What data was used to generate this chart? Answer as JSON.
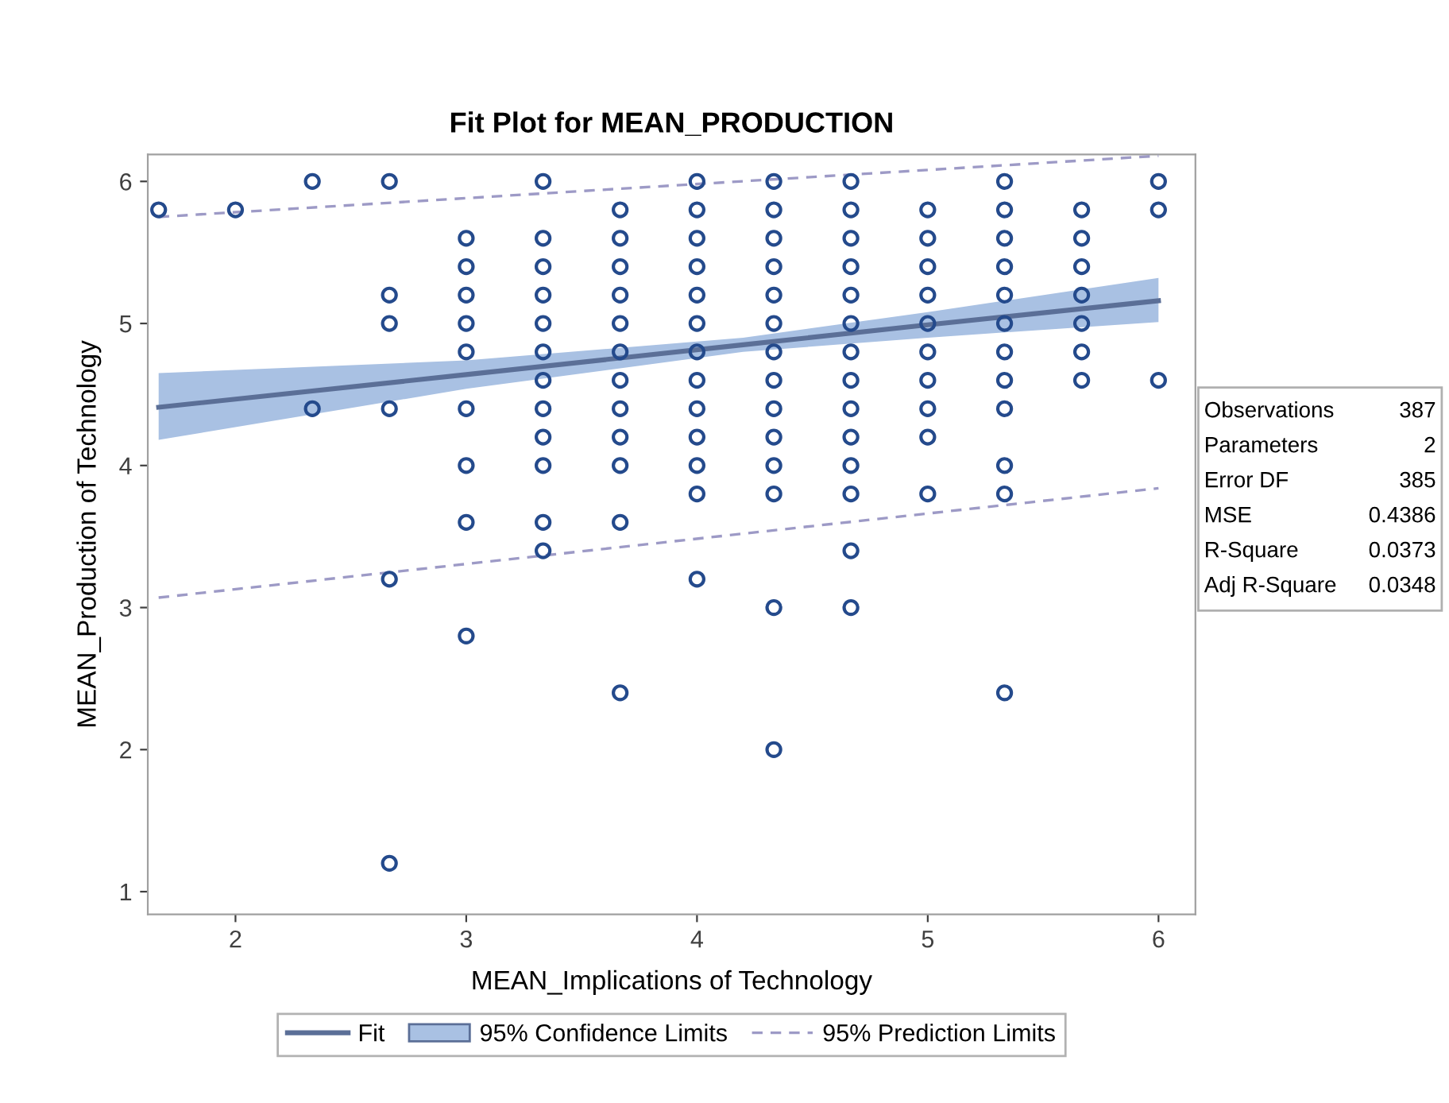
{
  "chart_data": {
    "type": "scatter",
    "title": "Fit Plot for MEAN_PRODUCTION",
    "xlabel": "MEAN_Implications of Technology",
    "ylabel": "MEAN_Production of Technology",
    "xlim": [
      1.62,
      6.16
    ],
    "ylim": [
      0.84,
      6.19
    ],
    "xticks": [
      2,
      3,
      4,
      5,
      6
    ],
    "yticks": [
      1,
      2,
      3,
      4,
      5,
      6
    ],
    "grid": false,
    "legend": "bottom",
    "annotations": [
      "Observations",
      "387",
      "Parameters",
      "2",
      "Error DF",
      "385",
      "MSE",
      "0.4386",
      "R-Square",
      "0.0373",
      "Adj R-Square",
      "0.0348",
      "95% Confidence Limits"
    ],
    "series": [
      {
        "type": "line",
        "name": "Fit",
        "color": "#5b6f97",
        "line_style": "solid",
        "x": [
          1.667,
          3,
          4.2,
          5,
          6
        ],
        "values": [
          4.41,
          4.64,
          4.85,
          4.99,
          5.16
        ],
        "lower": [
          4.18,
          4.54,
          4.8,
          4.9,
          5.01
        ],
        "upper": [
          4.65,
          4.74,
          4.9,
          5.08,
          5.32
        ]
      },
      {
        "type": "line",
        "name": "95% Prediction Limits",
        "color": "#9d9ac6",
        "line_style": "dashed",
        "x": [
          1.667,
          6
        ],
        "values": [
          5.75,
          6.18
        ]
      },
      {
        "type": "line",
        "color": "#9d9ac6",
        "line_style": "dashed",
        "x": [
          1.667,
          6
        ],
        "values": [
          3.07,
          3.84
        ]
      },
      {
        "type": "scatter",
        "color": "#244a8c",
        "marker": "circle",
        "x": [
          1.667,
          2,
          2.333,
          2.333,
          2.667,
          2.667,
          2.667,
          2.667,
          2.667,
          2.667,
          3,
          3,
          3,
          3,
          3,
          3,
          3,
          3,
          3,
          3.333,
          3.333,
          3.333,
          3.333,
          3.333,
          3.333,
          3.333,
          3.333,
          3.333,
          3.333,
          3.333,
          3.333,
          3.667,
          3.667,
          3.667,
          3.667,
          3.667,
          3.667,
          3.667,
          3.667,
          3.667,
          3.667,
          3.667,
          3.667,
          4,
          4,
          4,
          4,
          4,
          4,
          4,
          4,
          4,
          4,
          4,
          4,
          4,
          4.333,
          4.333,
          4.333,
          4.333,
          4.333,
          4.333,
          4.333,
          4.333,
          4.333,
          4.333,
          4.333,
          4.333,
          4.333,
          4.333,
          4.667,
          4.667,
          4.667,
          4.667,
          4.667,
          4.667,
          4.667,
          4.667,
          4.667,
          4.667,
          4.667,
          4.667,
          4.667,
          4.667,
          5,
          5,
          5,
          5,
          5,
          5,
          5,
          5,
          5,
          5,
          5.333,
          5.333,
          5.333,
          5.333,
          5.333,
          5.333,
          5.333,
          5.333,
          5.333,
          5.333,
          5.333,
          5.333,
          5.667,
          5.667,
          5.667,
          5.667,
          5.667,
          5.667,
          5.667,
          6,
          6,
          6
        ],
        "values": [
          5.8,
          5.8,
          6,
          4.4,
          6,
          5.2,
          5.0,
          4.4,
          3.2,
          1.2,
          5.6,
          5.4,
          5.2,
          5.0,
          4.8,
          4.4,
          4.0,
          3.6,
          2.8,
          6,
          5.6,
          5.4,
          5.2,
          5.0,
          4.8,
          4.6,
          4.4,
          4.2,
          4.0,
          3.6,
          3.4,
          5.8,
          5.6,
          5.4,
          5.2,
          5.0,
          4.8,
          4.6,
          4.4,
          4.2,
          4.0,
          3.6,
          2.4,
          6,
          5.8,
          5.6,
          5.4,
          5.2,
          5.0,
          4.8,
          4.6,
          4.4,
          4.2,
          4.0,
          3.8,
          3.2,
          6,
          5.8,
          5.6,
          5.4,
          5.2,
          5.0,
          4.8,
          4.6,
          4.4,
          4.2,
          4.0,
          3.8,
          3.0,
          2.0,
          6,
          5.8,
          5.6,
          5.4,
          5.2,
          5.0,
          4.8,
          4.6,
          4.4,
          4.2,
          4.0,
          3.8,
          3.4,
          3.0,
          5.8,
          5.6,
          5.4,
          5.2,
          5.0,
          4.8,
          4.6,
          4.4,
          4.2,
          3.8,
          6,
          5.8,
          5.6,
          5.4,
          5.2,
          5.0,
          4.8,
          4.6,
          4.4,
          4.0,
          3.8,
          2.4,
          5.8,
          5.6,
          5.4,
          5.2,
          5.0,
          4.8,
          4.6,
          6,
          5.8,
          4.6
        ]
      }
    ]
  }
}
